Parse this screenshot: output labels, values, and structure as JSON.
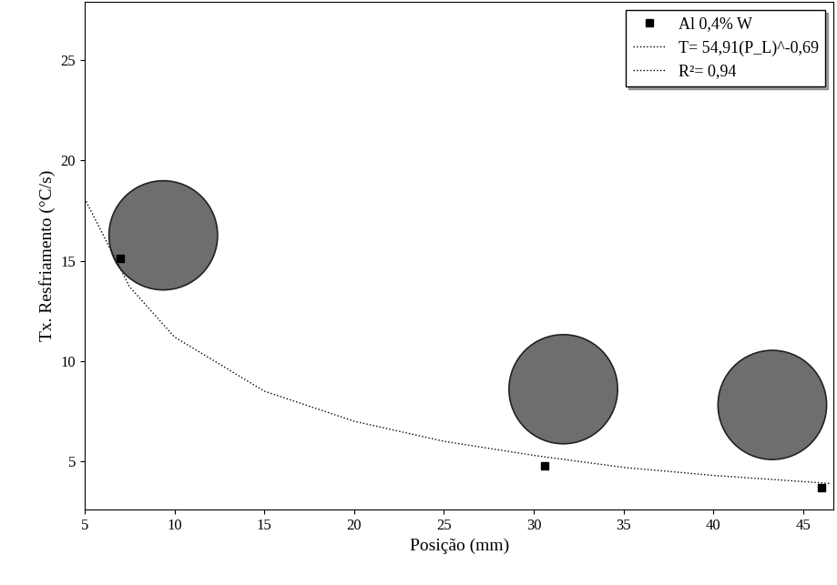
{
  "chart_data": {
    "type": "scatter",
    "x_label": "Posição (mm)",
    "y_label": "Tx. Resfriamento (°C/s)",
    "xlim": [
      5,
      46.7
    ],
    "ylim": [
      2.6,
      27.9
    ],
    "xticks": [
      5,
      10,
      15,
      20,
      25,
      30,
      35,
      40,
      45
    ],
    "yticks": [
      5,
      10,
      15,
      20,
      25
    ],
    "legend": "upper right",
    "grid": false,
    "series": [
      {
        "name": "Al 0,4% W",
        "type": "scatter",
        "marker": "square",
        "color": "#000000",
        "x": [
          7,
          30.6,
          46
        ],
        "values": [
          15.1,
          4.8,
          3.7
        ]
      },
      {
        "name": "T= 54,91(P_L)^-0,69",
        "type": "line",
        "line_style": "dotted",
        "color": "#000000",
        "x": [
          5,
          7.5,
          10,
          15,
          20,
          25,
          30,
          35,
          40,
          46.5
        ],
        "values": [
          18.1,
          13.7,
          11.2,
          8.5,
          7.0,
          6.0,
          5.3,
          4.7,
          4.3,
          3.9
        ]
      },
      {
        "name": "R²= 0,94",
        "type": "line",
        "line_style": "dotted",
        "color": "#000000",
        "x": [],
        "values": []
      }
    ]
  }
}
